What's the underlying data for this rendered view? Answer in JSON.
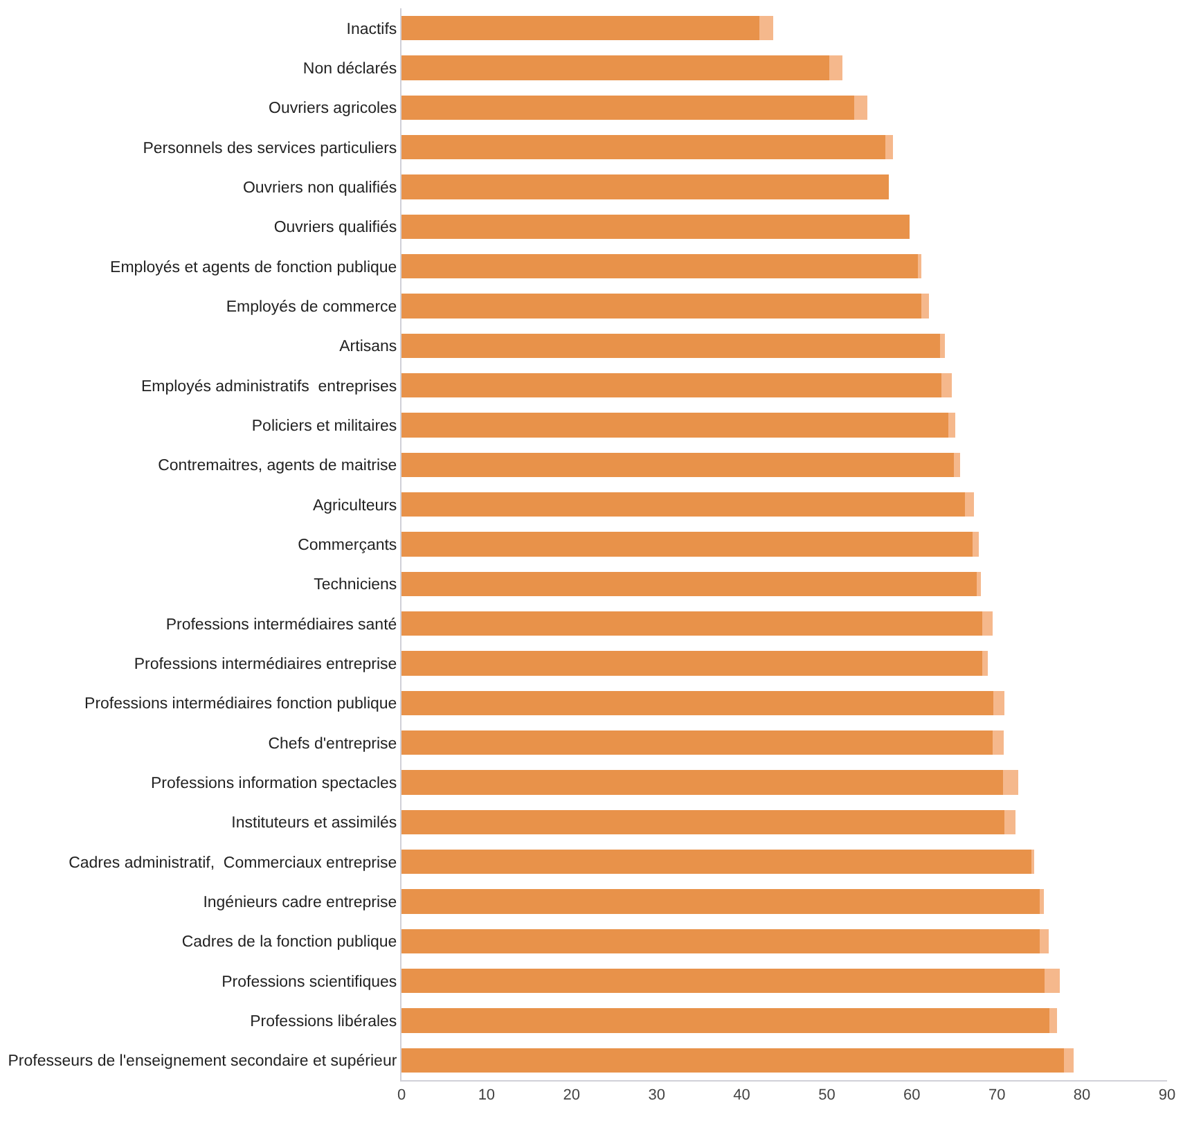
{
  "chart_data": {
    "type": "bar",
    "orientation": "horizontal",
    "stacked": true,
    "categories": [
      "Inactifs",
      "Non déclarés",
      "Ouvriers agricoles",
      "Personnels des services particuliers",
      "Ouvriers non qualifiés",
      "Ouvriers qualifiés",
      "Employés et agents de fonction publique",
      "Employés de commerce",
      "Artisans",
      "Employés administratifs  entreprises",
      "Policiers et militaires",
      "Contremaitres, agents de maitrise",
      "Agriculteurs",
      "Commerçants",
      "Techniciens",
      "Professions intermédiaires santé",
      "Professions intermédiaires entreprise",
      "Professions intermédiaires fonction publique",
      "Chefs d'entreprise",
      "Professions information spectacles",
      "Instituteurs et assimilés",
      "Cadres administratif,  Commerciaux entreprise",
      "Ingénieurs cadre entreprise",
      "Cadres de la fonction publique",
      "Professions scientifiques",
      "Professions libérales",
      "Professeurs de l'enseignement secondaire et supérieur"
    ],
    "series": [
      {
        "color": "#e8924a",
        "values": [
          42.1,
          50.3,
          53.2,
          56.9,
          57.3,
          59.7,
          60.7,
          61.1,
          63.3,
          63.5,
          64.3,
          64.9,
          66.2,
          67.1,
          67.6,
          68.3,
          68.3,
          69.6,
          69.5,
          70.7,
          70.9,
          74.2,
          75.0,
          75.0,
          75.6,
          76.2,
          77.9
        ]
      },
      {
        "color": "#f5b88c",
        "values": [
          1.6,
          1.5,
          1.6,
          0.9,
          null,
          null,
          0.4,
          0.9,
          0.6,
          1.2,
          0.8,
          0.8,
          1.1,
          0.8,
          0.5,
          1.2,
          0.6,
          1.3,
          1.3,
          1.8,
          1.3,
          0.2,
          0.5,
          1.1,
          1.8,
          0.9,
          1.1
        ]
      }
    ],
    "xlim": [
      0,
      90
    ],
    "xticks": [
      0,
      10,
      20,
      30,
      40,
      50,
      60,
      70,
      80,
      90
    ],
    "grid": false
  }
}
